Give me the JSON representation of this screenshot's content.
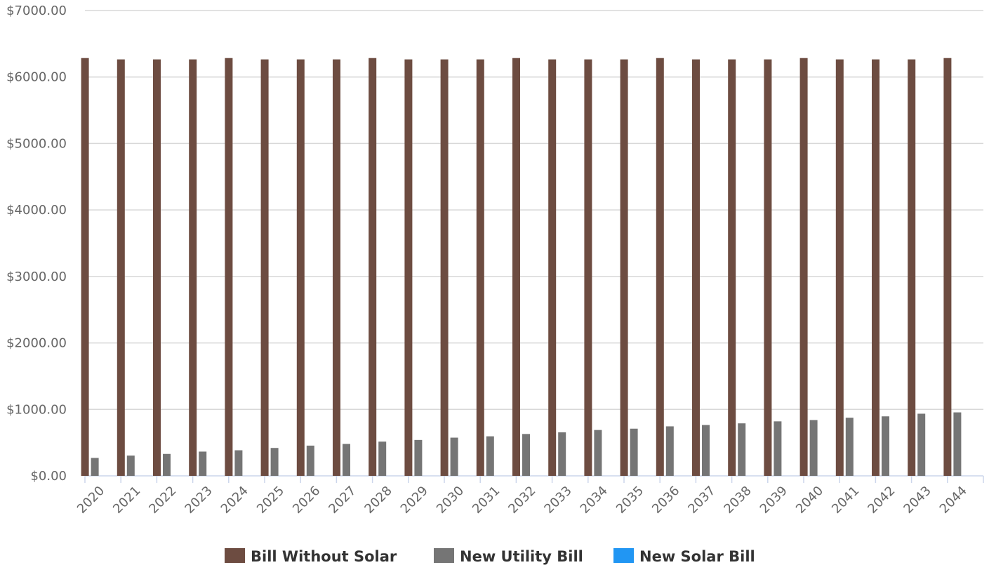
{
  "chart_data": {
    "type": "bar",
    "title": "",
    "xlabel": "",
    "ylabel": "",
    "categories": [
      "2020",
      "2021",
      "2022",
      "2023",
      "2024",
      "2025",
      "2026",
      "2027",
      "2028",
      "2029",
      "2030",
      "2031",
      "2032",
      "2033",
      "2034",
      "2035",
      "2036",
      "2037",
      "2038",
      "2039",
      "2040",
      "2041",
      "2042",
      "2043",
      "2044"
    ],
    "series": [
      {
        "name": "Bill Without Solar",
        "color": "#6d4c41",
        "values": [
          6285,
          6265,
          6265,
          6265,
          6285,
          6265,
          6265,
          6265,
          6285,
          6265,
          6265,
          6265,
          6285,
          6265,
          6265,
          6265,
          6285,
          6265,
          6265,
          6265,
          6285,
          6265,
          6265,
          6265,
          6285
        ]
      },
      {
        "name": "New Utility Bill",
        "color": "#757575",
        "values": [
          270,
          305,
          330,
          365,
          385,
          420,
          455,
          480,
          515,
          540,
          575,
          595,
          630,
          655,
          690,
          710,
          745,
          765,
          790,
          820,
          840,
          875,
          895,
          935,
          955
        ]
      },
      {
        "name": "New Solar Bill",
        "color": "#2196f3",
        "values": [
          0,
          0,
          0,
          0,
          0,
          0,
          0,
          0,
          0,
          0,
          0,
          0,
          0,
          0,
          0,
          0,
          0,
          0,
          0,
          0,
          0,
          0,
          0,
          0,
          0
        ]
      }
    ],
    "ylim": [
      0,
      7000
    ],
    "yticks": [
      "$0.00",
      "$1000.00",
      "$2000.00",
      "$3000.00",
      "$4000.00",
      "$5000.00",
      "$6000.00",
      "$7000.00"
    ],
    "grid": true,
    "legend_position": "bottom"
  }
}
